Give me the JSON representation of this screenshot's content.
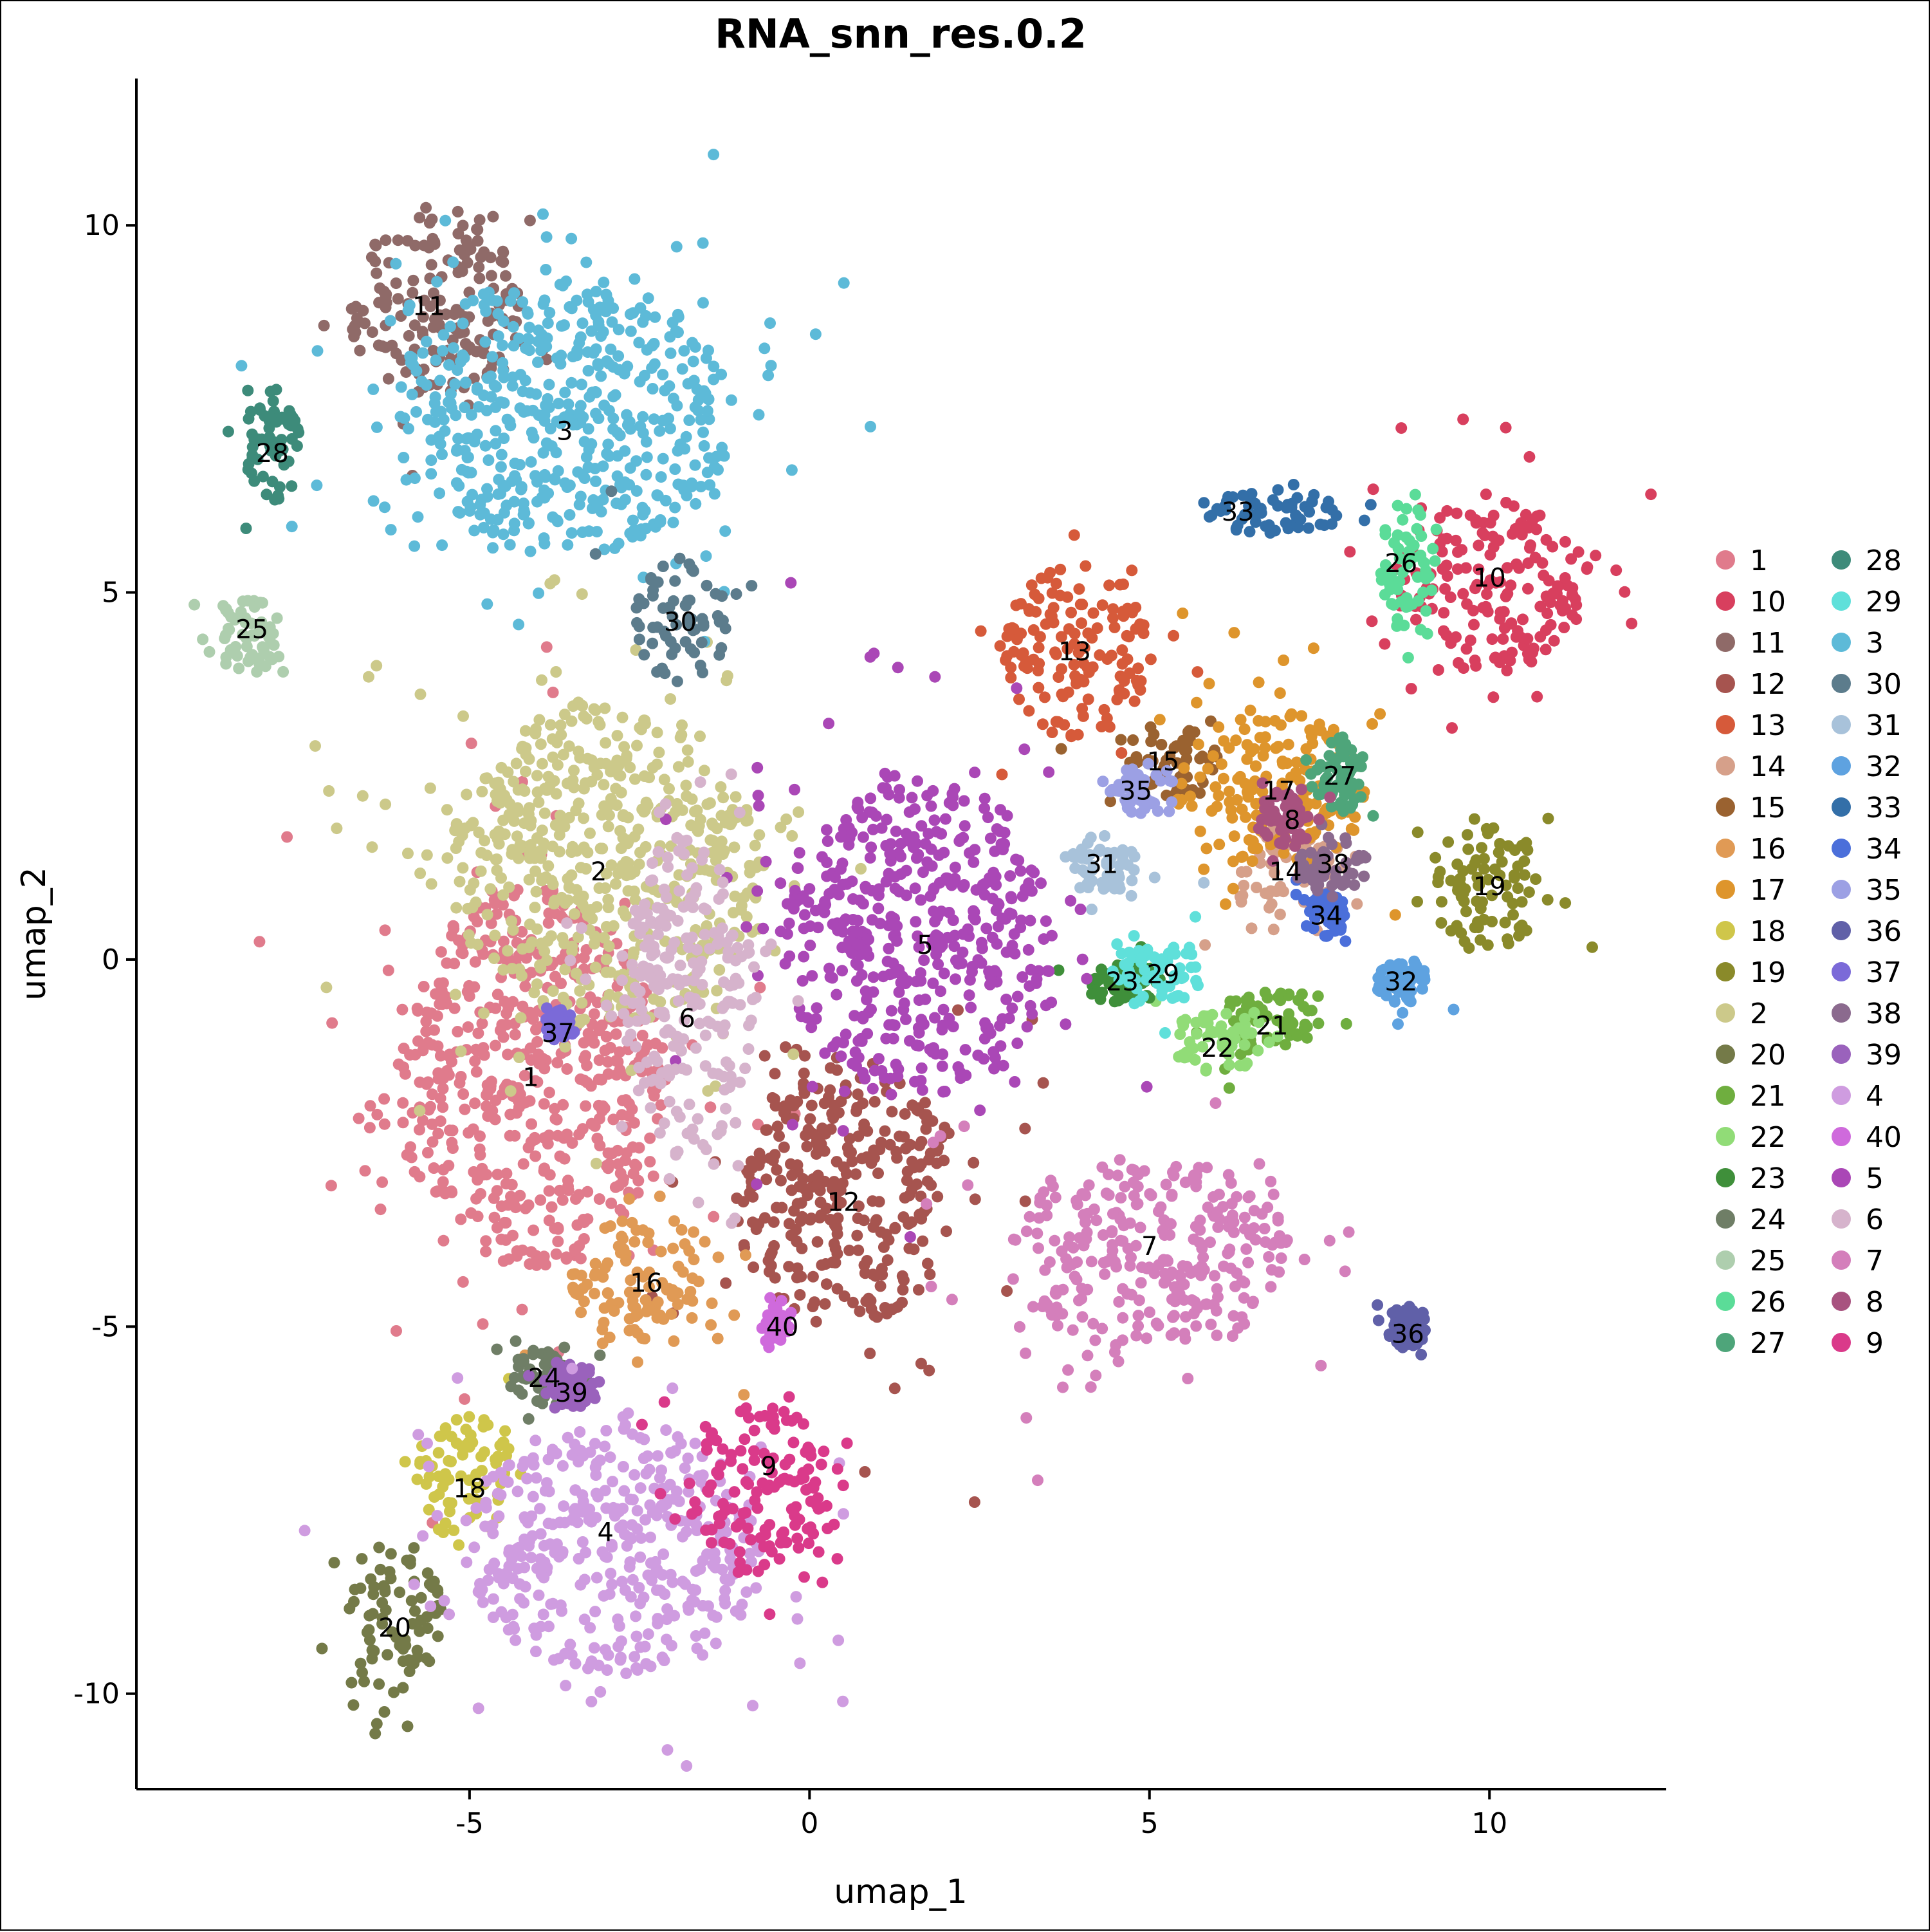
{
  "chart_data": {
    "type": "scatter",
    "title": "RNA_snn_res.0.2",
    "xlabel": "umap_1",
    "ylabel": "umap_2",
    "xlim": [
      -9.9,
      12.6
    ],
    "ylim": [
      -11.3,
      12
    ],
    "x_ticks": [
      -5,
      0,
      5,
      10
    ],
    "y_ticks": [
      -10,
      -5,
      0,
      5,
      10
    ],
    "x_tick_labels": [
      "-5",
      "0",
      "5",
      "10"
    ],
    "y_tick_labels": [
      "-10",
      "-5",
      "0",
      "5",
      "10"
    ],
    "grid": false,
    "legend_position": "right",
    "legend_columns": 2,
    "clusters": [
      {
        "id": "1",
        "color": "#E07B8C",
        "x": -4.1,
        "y": -1.6,
        "rx": 2.0,
        "ry": 2.6
      },
      {
        "id": "10",
        "color": "#D83F5E",
        "x": 10.0,
        "y": 5.1,
        "rx": 1.4,
        "ry": 1.2
      },
      {
        "id": "11",
        "color": "#8F6A68",
        "x": -5.5,
        "y": 8.9,
        "rx": 1.3,
        "ry": 1.2
      },
      {
        "id": "12",
        "color": "#A6544F",
        "x": 0.5,
        "y": -3.2,
        "rx": 1.6,
        "ry": 1.8
      },
      {
        "id": "13",
        "color": "#D65A3A",
        "x": 3.9,
        "y": 4.2,
        "rx": 1.1,
        "ry": 1.2
      },
      {
        "id": "14",
        "color": "#D6A08A",
        "x": 7.0,
        "y": 1.2,
        "rx": 0.9,
        "ry": 0.6
      },
      {
        "id": "15",
        "color": "#9A6230",
        "x": 5.2,
        "y": 2.7,
        "rx": 0.8,
        "ry": 0.5
      },
      {
        "id": "16",
        "color": "#E09A55",
        "x": -2.4,
        "y": -4.4,
        "rx": 1.1,
        "ry": 0.9
      },
      {
        "id": "17",
        "color": "#DE952C",
        "x": 6.8,
        "y": 2.3,
        "rx": 1.4,
        "ry": 1.1
      },
      {
        "id": "18",
        "color": "#CFC64A",
        "x": -5.0,
        "y": -7.1,
        "rx": 0.8,
        "ry": 0.9
      },
      {
        "id": "19",
        "color": "#8A8A2A",
        "x": 10.0,
        "y": 1.0,
        "rx": 0.9,
        "ry": 0.9
      },
      {
        "id": "2",
        "color": "#CCC98A",
        "x": -3.0,
        "y": 1.3,
        "rx": 2.3,
        "ry": 2.2
      },
      {
        "id": "20",
        "color": "#747A48",
        "x": -6.1,
        "y": -9.0,
        "rx": 0.7,
        "ry": 1.1
      },
      {
        "id": "21",
        "color": "#6FAE3F",
        "x": 6.8,
        "y": -0.8,
        "rx": 0.8,
        "ry": 0.4
      },
      {
        "id": "22",
        "color": "#91DC77",
        "x": 6.0,
        "y": -1.1,
        "rx": 0.7,
        "ry": 0.4
      },
      {
        "id": "23",
        "color": "#3F8F3A",
        "x": 4.6,
        "y": -0.3,
        "rx": 0.6,
        "ry": 0.3
      },
      {
        "id": "24",
        "color": "#6F7E66",
        "x": -3.9,
        "y": -5.7,
        "rx": 0.5,
        "ry": 0.4
      },
      {
        "id": "25",
        "color": "#AECEAE",
        "x": -8.2,
        "y": 4.4,
        "rx": 0.5,
        "ry": 0.6
      },
      {
        "id": "26",
        "color": "#5BDC98",
        "x": 8.8,
        "y": 5.4,
        "rx": 0.4,
        "ry": 0.9
      },
      {
        "id": "27",
        "color": "#4EA57A",
        "x": 7.8,
        "y": 2.5,
        "rx": 0.4,
        "ry": 0.5
      },
      {
        "id": "28",
        "color": "#3D8B7A",
        "x": -7.9,
        "y": 7.0,
        "rx": 0.4,
        "ry": 0.8
      },
      {
        "id": "29",
        "color": "#5FE0DA",
        "x": 5.2,
        "y": -0.2,
        "rx": 0.6,
        "ry": 0.4
      },
      {
        "id": "3",
        "color": "#5DBAD8",
        "x": -3.6,
        "y": 7.4,
        "rx": 2.5,
        "ry": 1.9
      },
      {
        "id": "30",
        "color": "#5C7C8C",
        "x": -1.9,
        "y": 4.6,
        "rx": 0.7,
        "ry": 0.9
      },
      {
        "id": "31",
        "color": "#A8C2DA",
        "x": 4.3,
        "y": 1.3,
        "rx": 0.5,
        "ry": 0.4
      },
      {
        "id": "32",
        "color": "#5EA2E0",
        "x": 8.7,
        "y": -0.3,
        "rx": 0.4,
        "ry": 0.3
      },
      {
        "id": "33",
        "color": "#336FA8",
        "x": 6.8,
        "y": 6.1,
        "rx": 1.1,
        "ry": 0.3
      },
      {
        "id": "34",
        "color": "#4B6FDA",
        "x": 7.6,
        "y": 0.6,
        "rx": 0.3,
        "ry": 0.3
      },
      {
        "id": "35",
        "color": "#9CA0E4",
        "x": 4.8,
        "y": 2.3,
        "rx": 0.4,
        "ry": 0.3
      },
      {
        "id": "36",
        "color": "#6060A8",
        "x": 8.8,
        "y": -5.0,
        "rx": 0.3,
        "ry": 0.3
      },
      {
        "id": "37",
        "color": "#7B6AD8",
        "x": -3.7,
        "y": -0.9,
        "rx": 0.2,
        "ry": 0.2
      },
      {
        "id": "38",
        "color": "#8B6A8E",
        "x": 7.7,
        "y": 1.3,
        "rx": 0.5,
        "ry": 0.4
      },
      {
        "id": "39",
        "color": "#9A62BC",
        "x": -3.5,
        "y": -5.8,
        "rx": 0.4,
        "ry": 0.3
      },
      {
        "id": "4",
        "color": "#CF9CE0",
        "x": -2.9,
        "y": -8.0,
        "rx": 2.2,
        "ry": 1.7
      },
      {
        "id": "40",
        "color": "#CF6ADC",
        "x": -0.5,
        "y": -5.0,
        "rx": 0.2,
        "ry": 0.2
      },
      {
        "id": "5",
        "color": "#AA47B6",
        "x": 1.6,
        "y": 0.3,
        "rx": 2.0,
        "ry": 2.2
      },
      {
        "id": "6",
        "color": "#D6B3CC",
        "x": -1.8,
        "y": -0.5,
        "rx": 1.0,
        "ry": 2.2
      },
      {
        "id": "7",
        "color": "#D47FBB",
        "x": 5.0,
        "y": -4.0,
        "rx": 2.1,
        "ry": 1.3
      },
      {
        "id": "8",
        "color": "#A8527F",
        "x": 7.0,
        "y": 1.9,
        "rx": 0.4,
        "ry": 0.4
      },
      {
        "id": "9",
        "color": "#DA3A8A",
        "x": -0.6,
        "y": -7.2,
        "rx": 1.1,
        "ry": 1.2
      }
    ],
    "cluster_labels": [
      {
        "text": "11",
        "x": -5.6,
        "y": 8.9
      },
      {
        "text": "3",
        "x": -3.6,
        "y": 7.2
      },
      {
        "text": "28",
        "x": -7.9,
        "y": 6.9
      },
      {
        "text": "25",
        "x": -8.2,
        "y": 4.5
      },
      {
        "text": "30",
        "x": -1.9,
        "y": 4.6
      },
      {
        "text": "2",
        "x": -3.1,
        "y": 1.2
      },
      {
        "text": "37",
        "x": -3.7,
        "y": -1.0
      },
      {
        "text": "6",
        "x": -1.8,
        "y": -0.8
      },
      {
        "text": "1",
        "x": -4.1,
        "y": -1.6
      },
      {
        "text": "5",
        "x": 1.7,
        "y": 0.2
      },
      {
        "text": "12",
        "x": 0.5,
        "y": -3.3
      },
      {
        "text": "16",
        "x": -2.4,
        "y": -4.4
      },
      {
        "text": "40",
        "x": -0.4,
        "y": -5.0
      },
      {
        "text": "24",
        "x": -3.9,
        "y": -5.7
      },
      {
        "text": "39",
        "x": -3.5,
        "y": -5.9
      },
      {
        "text": "18",
        "x": -5.0,
        "y": -7.2
      },
      {
        "text": "9",
        "x": -0.6,
        "y": -6.9
      },
      {
        "text": "4",
        "x": -3.0,
        "y": -7.8
      },
      {
        "text": "20",
        "x": -6.1,
        "y": -9.1
      },
      {
        "text": "7",
        "x": 5.0,
        "y": -3.9
      },
      {
        "text": "36",
        "x": 8.8,
        "y": -5.1
      },
      {
        "text": "13",
        "x": 3.9,
        "y": 4.2
      },
      {
        "text": "15",
        "x": 5.2,
        "y": 2.7
      },
      {
        "text": "35",
        "x": 4.8,
        "y": 2.3
      },
      {
        "text": "31",
        "x": 4.3,
        "y": 1.3
      },
      {
        "text": "17",
        "x": 6.9,
        "y": 2.3
      },
      {
        "text": "27",
        "x": 7.8,
        "y": 2.5
      },
      {
        "text": "8",
        "x": 7.1,
        "y": 1.9
      },
      {
        "text": "14",
        "x": 7.0,
        "y": 1.2
      },
      {
        "text": "38",
        "x": 7.7,
        "y": 1.3
      },
      {
        "text": "34",
        "x": 7.6,
        "y": 0.6
      },
      {
        "text": "19",
        "x": 10.0,
        "y": 1.0
      },
      {
        "text": "23",
        "x": 4.6,
        "y": -0.3
      },
      {
        "text": "29",
        "x": 5.2,
        "y": -0.2
      },
      {
        "text": "21",
        "x": 6.8,
        "y": -0.9
      },
      {
        "text": "22",
        "x": 6.0,
        "y": -1.2
      },
      {
        "text": "32",
        "x": 8.7,
        "y": -0.3
      },
      {
        "text": "33",
        "x": 6.3,
        "y": 6.1
      },
      {
        "text": "26",
        "x": 8.7,
        "y": 5.4
      },
      {
        "text": "10",
        "x": 10.0,
        "y": 5.2
      }
    ]
  }
}
